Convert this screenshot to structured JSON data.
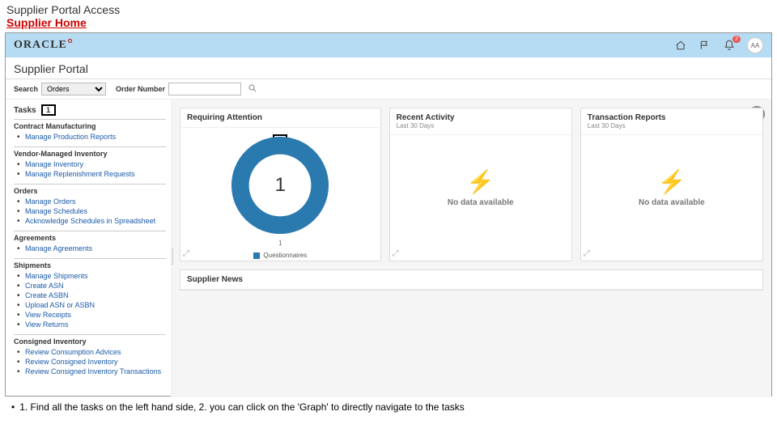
{
  "doc": {
    "title": "Supplier Portal Access",
    "subtitle": "Supplier Home",
    "footnote": "1. Find all the tasks on the left hand side, 2. you can click on the 'Graph' to directly navigate to the tasks"
  },
  "brand": {
    "logo_text": "ORACLE"
  },
  "topbar": {
    "badge_count": "2",
    "avatar_initials": "AA"
  },
  "portal": {
    "title": "Supplier Portal"
  },
  "search": {
    "label": "Search",
    "type_value": "Orders",
    "order_label": "Order Number",
    "order_value": ""
  },
  "sidebar": {
    "tasks_label": "Tasks",
    "callout1": "1",
    "groups": [
      {
        "title": "Contract Manufacturing",
        "items": [
          "Manage Production Reports"
        ]
      },
      {
        "title": "Vendor-Managed Inventory",
        "items": [
          "Manage Inventory",
          "Manage Replenishment Requests"
        ]
      },
      {
        "title": "Orders",
        "items": [
          "Manage Orders",
          "Manage Schedules",
          "Acknowledge Schedules in Spreadsheet"
        ]
      },
      {
        "title": "Agreements",
        "items": [
          "Manage Agreements"
        ]
      },
      {
        "title": "Shipments",
        "items": [
          "Manage Shipments",
          "Create ASN",
          "Create ASBN",
          "Upload ASN or ASBN",
          "View Receipts",
          "View Returns"
        ]
      },
      {
        "title": "Consigned Inventory",
        "items": [
          "Review Consumption Advices",
          "Review Consigned Inventory",
          "Review Consigned Inventory Transactions"
        ]
      }
    ]
  },
  "cards": {
    "attention": {
      "title": "Requiring Attention",
      "callout2": "2",
      "center_value": "1",
      "bottom_axis": "1",
      "legend_label": "Questionnaires",
      "donut_color": "#2a7ab0",
      "donut_bg": "#f9f9f9"
    },
    "recent": {
      "title": "Recent Activity",
      "subtitle": "Last 30 Days",
      "empty_text": "No data available"
    },
    "reports": {
      "title": "Transaction Reports",
      "subtitle": "Last 30 Days",
      "empty_text": "No data available"
    },
    "news": {
      "title": "Supplier News"
    }
  }
}
